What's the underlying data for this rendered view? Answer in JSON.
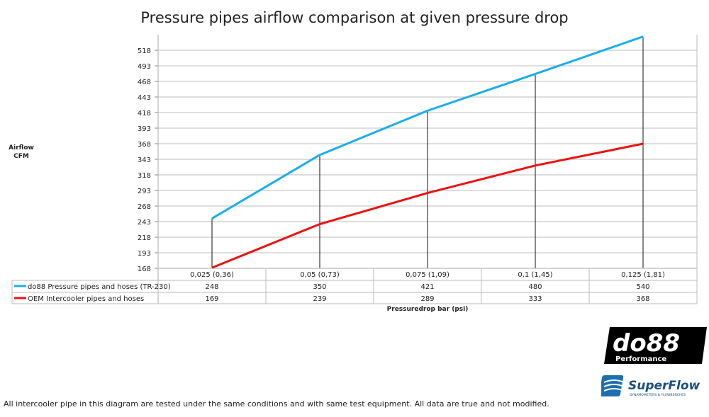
{
  "chart_data": {
    "type": "line",
    "title": "Pressure pipes airflow comparison at given pressure drop",
    "ylabel_lines": [
      "Airflow",
      "CFM"
    ],
    "xlabel": "Pressuredrop bar (psi)",
    "categories": [
      "0,025 (0,36)",
      "0,05 (0,73)",
      "0,075 (1,09)",
      "0,1 (1,45)",
      "0,125 (1,81)"
    ],
    "yticks": [
      168,
      193,
      218,
      243,
      268,
      293,
      318,
      343,
      368,
      393,
      418,
      443,
      468,
      493,
      518
    ],
    "ylim": [
      168,
      543
    ],
    "grid": true,
    "legend": "data-table-below",
    "series": [
      {
        "name": "do88 Pressure pipes and hoses (TR-230)",
        "values": [
          248,
          350,
          421,
          480,
          540
        ],
        "color": "#1aaeea"
      },
      {
        "name": "OEM Intercooler pipes and hoses",
        "values": [
          169,
          239,
          289,
          333,
          368
        ],
        "color": "#ee1111"
      }
    ],
    "drop_lines": true
  },
  "logos": {
    "do88": "do88 Performance",
    "superflow": "SuperFlow DYNAMOMETERS & FLOWBENCHES"
  },
  "footnote": "All intercooler pipe in this diagram are tested under the same conditions and with same test equipment. All data are true and not modified."
}
